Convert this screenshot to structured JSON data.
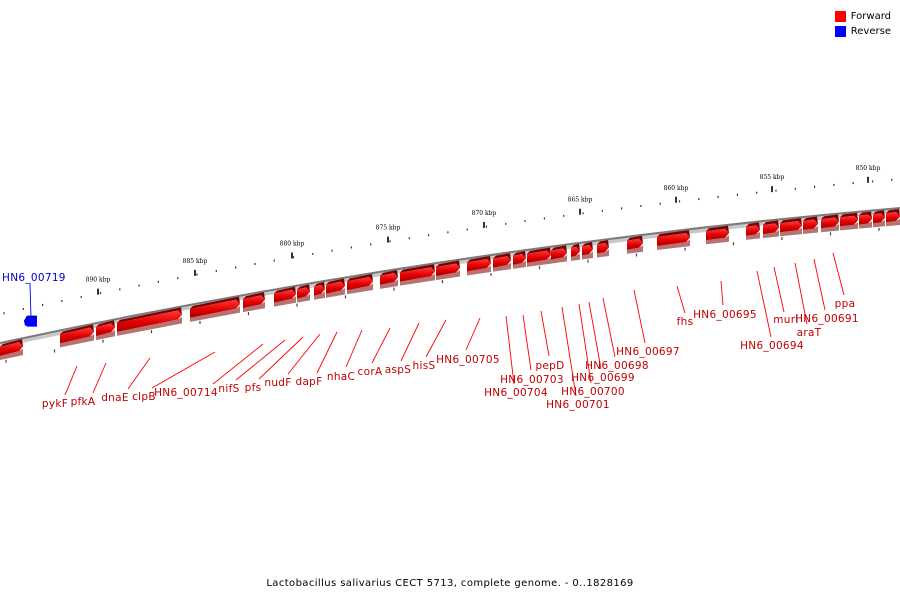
{
  "legend": {
    "forward_label": "Forward",
    "reverse_label": "Reverse",
    "forward_color": "#ff0000",
    "reverse_color": "#0000ff"
  },
  "caption": "Lactobacillus salivarius CECT 5713, complete genome. - 0..1828169",
  "ticks": [
    "890 kbp",
    "885 kbp",
    "880 kbp",
    "875 kbp",
    "870 kbp",
    "865 kbp",
    "860 kbp",
    "855 kbp",
    "850 kbp"
  ],
  "genes": {
    "reverse": [
      "HN6_00719"
    ],
    "forward": [
      "pykF",
      "pfkA",
      "dnaE",
      "clpB",
      "HN6_00714",
      "nifS",
      "pfs",
      "nudF",
      "dapF",
      "nhaC",
      "corA",
      "aspS",
      "hisS",
      "HN6_00705",
      "HN6_00704",
      "HN6_00703",
      "pepD",
      "HN6_00701",
      "HN6_00700",
      "HN6_00699",
      "HN6_00698",
      "HN6_00697",
      "fhs",
      "HN6_00695",
      "HN6_00694",
      "murI",
      "araT",
      "HN6_00691",
      "ppa"
    ]
  }
}
